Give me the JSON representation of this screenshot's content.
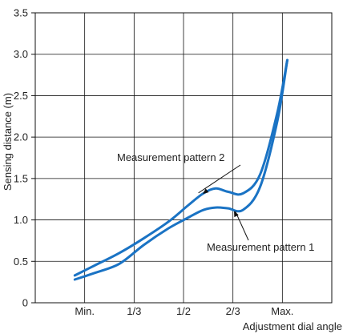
{
  "chart_data": {
    "type": "line",
    "title": "",
    "xlabel": "Adjustment dial angle",
    "ylabel": "Sensing distance (m)",
    "categories": [
      "",
      "Min.",
      "1/3",
      "1/2",
      "2/3",
      "Max.",
      ""
    ],
    "xlim": [
      0,
      6
    ],
    "ylim": [
      0,
      3.5
    ],
    "yticks": [
      "0",
      "0.5",
      "1.0",
      "1.5",
      "2.0",
      "2.5",
      "3.0",
      "3.5"
    ],
    "grid": true,
    "line_color": "#1a73c4",
    "series": [
      {
        "name": "Measurement pattern 2",
        "x": [
          0.8,
          1.2,
          1.7,
          2.2,
          2.7,
          3.1,
          3.4,
          3.65,
          3.9,
          4.2,
          4.55,
          4.9,
          5.1
        ],
        "y": [
          0.33,
          0.45,
          0.6,
          0.78,
          0.98,
          1.18,
          1.32,
          1.38,
          1.34,
          1.32,
          1.55,
          2.3,
          2.93
        ]
      },
      {
        "name": "Measurement pattern 1",
        "x": [
          0.8,
          1.2,
          1.7,
          2.2,
          2.7,
          3.1,
          3.4,
          3.65,
          3.9,
          4.2,
          4.55,
          4.9,
          5.1
        ],
        "y": [
          0.28,
          0.36,
          0.47,
          0.7,
          0.9,
          1.03,
          1.12,
          1.15,
          1.14,
          1.12,
          1.4,
          2.2,
          2.93
        ]
      }
    ],
    "annotations": [
      {
        "text": "Measurement pattern 2",
        "series": 0,
        "x": 3.35
      },
      {
        "text": "Measurement pattern 1",
        "series": 1,
        "x": 4.0
      }
    ]
  }
}
